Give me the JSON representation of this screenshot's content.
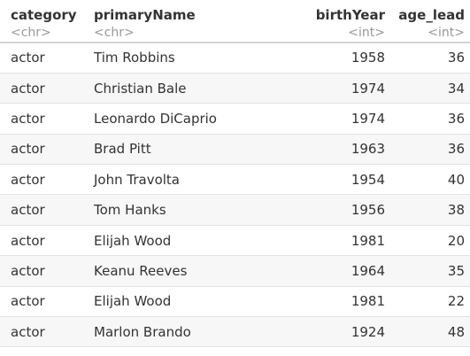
{
  "columns": [
    {
      "name": "category",
      "type": "<chr>"
    },
    {
      "name": "primaryName",
      "type": "<chr>"
    },
    {
      "name": "birthYear",
      "type": "<int>"
    },
    {
      "name": "age_lead",
      "type": "<int>"
    }
  ],
  "rows": [
    [
      "actor",
      "Tim Robbins",
      "1958",
      "36"
    ],
    [
      "actor",
      "Christian Bale",
      "1974",
      "34"
    ],
    [
      "actor",
      "Leonardo DiCaprio",
      "1974",
      "36"
    ],
    [
      "actor",
      "Brad Pitt",
      "1963",
      "36"
    ],
    [
      "actor",
      "John Travolta",
      "1954",
      "40"
    ],
    [
      "actor",
      "Tom Hanks",
      "1956",
      "38"
    ],
    [
      "actor",
      "Elijah Wood",
      "1981",
      "20"
    ],
    [
      "actor",
      "Keanu Reeves",
      "1964",
      "35"
    ],
    [
      "actor",
      "Elijah Wood",
      "1981",
      "22"
    ],
    [
      "actor",
      "Marlon Brando",
      "1924",
      "48"
    ]
  ]
}
